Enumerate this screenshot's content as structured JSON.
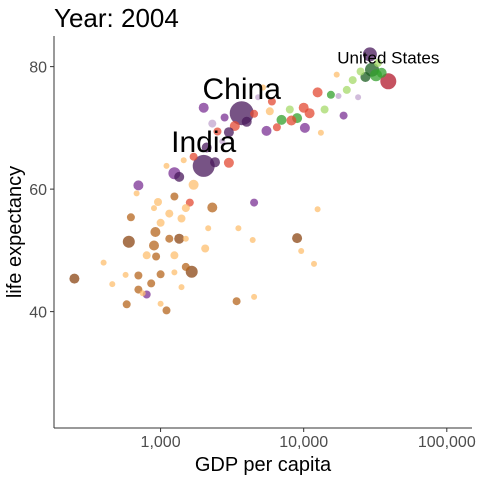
{
  "chart_data": {
    "type": "scatter",
    "title": "Year: 2004",
    "xlabel": "GDP per capita",
    "ylabel": "life expectancy",
    "xscale": "log",
    "xlim": [
      180,
      150000
    ],
    "ylim": [
      21,
      85
    ],
    "xticks": [
      1000,
      10000,
      100000
    ],
    "xtick_labels": [
      "1,000",
      "10,000",
      "100,000"
    ],
    "yticks": [
      40,
      60,
      80
    ],
    "ytick_labels": [
      "40",
      "60",
      "80"
    ],
    "grid": false,
    "size_note": "point area proportional to population",
    "continent_colors": {
      "africa": "#b5651d",
      "africa_light": "#fdbf6f",
      "americas": "#7b3294",
      "americas_light": "#c2a5cf",
      "asia": "#e34a33",
      "europe": "#33a02c",
      "europe_light": "#a6d96a",
      "oceania": "#b2182b"
    },
    "labels": [
      {
        "text": "China",
        "x": 3690,
        "y": 72.4,
        "size": 30
      },
      {
        "text": "India",
        "x": 2000,
        "y": 63.8,
        "size": 30
      },
      {
        "text": "United States",
        "x": 39000,
        "y": 79.2,
        "size": 17
      }
    ],
    "points": [
      {
        "x": 3690,
        "y": 72.4,
        "r": 12,
        "c": "#4a1a5c"
      },
      {
        "x": 2000,
        "y": 63.8,
        "r": 11,
        "c": "#4a1a5c"
      },
      {
        "x": 39000,
        "y": 77.6,
        "r": 8,
        "c": "#b2182b"
      },
      {
        "x": 29000,
        "y": 82.0,
        "r": 7,
        "c": "#4a1a5c"
      },
      {
        "x": 30000,
        "y": 79.5,
        "r": 7,
        "c": "#1b5e20"
      },
      {
        "x": 32000,
        "y": 78.6,
        "r": 6,
        "c": "#33a02c"
      },
      {
        "x": 35000,
        "y": 79.0,
        "r": 5,
        "c": "#33a02c"
      },
      {
        "x": 27000,
        "y": 78.3,
        "r": 5,
        "c": "#1b5e20"
      },
      {
        "x": 33000,
        "y": 80.6,
        "r": 4,
        "c": "#a6d96a"
      },
      {
        "x": 25000,
        "y": 79.2,
        "r": 4,
        "c": "#a6d96a"
      },
      {
        "x": 22000,
        "y": 77.8,
        "r": 4,
        "c": "#a6d96a"
      },
      {
        "x": 20000,
        "y": 76.2,
        "r": 4,
        "c": "#a6d96a"
      },
      {
        "x": 17000,
        "y": 78.7,
        "r": 3,
        "c": "#fdbf6f"
      },
      {
        "x": 15500,
        "y": 75.4,
        "r": 4,
        "c": "#33a02c"
      },
      {
        "x": 14000,
        "y": 73.0,
        "r": 4,
        "c": "#a6d96a"
      },
      {
        "x": 12500,
        "y": 75.8,
        "r": 5,
        "c": "#e34a33"
      },
      {
        "x": 11000,
        "y": 72.4,
        "r": 5,
        "c": "#e34a33"
      },
      {
        "x": 10000,
        "y": 73.3,
        "r": 5,
        "c": "#e34a33"
      },
      {
        "x": 9000,
        "y": 71.6,
        "r": 5,
        "c": "#33a02c"
      },
      {
        "x": 8000,
        "y": 73.0,
        "r": 4,
        "c": "#a6d96a"
      },
      {
        "x": 7000,
        "y": 71.3,
        "r": 5,
        "c": "#33a02c"
      },
      {
        "x": 6500,
        "y": 70.1,
        "r": 4,
        "c": "#e34a33"
      },
      {
        "x": 5800,
        "y": 72.7,
        "r": 4,
        "c": "#fdbf6f"
      },
      {
        "x": 6000,
        "y": 74.3,
        "r": 4,
        "c": "#e34a33"
      },
      {
        "x": 5200,
        "y": 76.6,
        "r": 3,
        "c": "#fdbf6f"
      },
      {
        "x": 4800,
        "y": 75.0,
        "r": 3,
        "c": "#c2a5cf"
      },
      {
        "x": 4500,
        "y": 72.3,
        "r": 4,
        "c": "#e34a33"
      },
      {
        "x": 10200,
        "y": 70.0,
        "r": 5,
        "c": "#7b3294"
      },
      {
        "x": 8200,
        "y": 71.2,
        "r": 5,
        "c": "#e34a33"
      },
      {
        "x": 13200,
        "y": 69.2,
        "r": 3,
        "c": "#fdbf6f"
      },
      {
        "x": 19000,
        "y": 72.0,
        "r": 4,
        "c": "#7b3294"
      },
      {
        "x": 24000,
        "y": 75.0,
        "r": 3,
        "c": "#c2a5cf"
      },
      {
        "x": 17500,
        "y": 75.2,
        "r": 3,
        "c": "#c2a5cf"
      },
      {
        "x": 5500,
        "y": 69.5,
        "r": 5,
        "c": "#7b3294"
      },
      {
        "x": 4000,
        "y": 71.0,
        "r": 5,
        "c": "#4a1a5c"
      },
      {
        "x": 3300,
        "y": 70.3,
        "r": 5,
        "c": "#e34a33"
      },
      {
        "x": 3000,
        "y": 69.3,
        "r": 5,
        "c": "#4a1a5c"
      },
      {
        "x": 2800,
        "y": 71.7,
        "r": 4,
        "c": "#7b3294"
      },
      {
        "x": 2500,
        "y": 69.4,
        "r": 4,
        "c": "#e34a33"
      },
      {
        "x": 2300,
        "y": 70.7,
        "r": 4,
        "c": "#c2a5cf"
      },
      {
        "x": 2000,
        "y": 73.3,
        "r": 5,
        "c": "#7b3294"
      },
      {
        "x": 2100,
        "y": 66.8,
        "r": 5,
        "c": "#4a1a5c"
      },
      {
        "x": 2400,
        "y": 64.4,
        "r": 5,
        "c": "#4a1a5c"
      },
      {
        "x": 2700,
        "y": 67.8,
        "r": 3,
        "c": "#c2a5cf"
      },
      {
        "x": 3000,
        "y": 64.3,
        "r": 5,
        "c": "#e34a33"
      },
      {
        "x": 1700,
        "y": 65.3,
        "r": 4,
        "c": "#e34a33"
      },
      {
        "x": 1450,
        "y": 64.7,
        "r": 3,
        "c": "#fdbf6f"
      },
      {
        "x": 1350,
        "y": 62.0,
        "r": 5,
        "c": "#4a1a5c"
      },
      {
        "x": 1250,
        "y": 62.6,
        "r": 6,
        "c": "#7b3294"
      },
      {
        "x": 1100,
        "y": 63.8,
        "r": 3,
        "c": "#fdbf6f"
      },
      {
        "x": 1700,
        "y": 60.7,
        "r": 5,
        "c": "#fdbf6f"
      },
      {
        "x": 1600,
        "y": 57.8,
        "r": 4,
        "c": "#e34a33"
      },
      {
        "x": 1250,
        "y": 58.8,
        "r": 4,
        "c": "#b5651d"
      },
      {
        "x": 700,
        "y": 60.6,
        "r": 5,
        "c": "#7b3294"
      },
      {
        "x": 680,
        "y": 59.3,
        "r": 3,
        "c": "#fdbf6f"
      },
      {
        "x": 960,
        "y": 57.9,
        "r": 4,
        "c": "#fdbf6f"
      },
      {
        "x": 900,
        "y": 56.9,
        "r": 3,
        "c": "#fdbf6f"
      },
      {
        "x": 1150,
        "y": 56.0,
        "r": 4,
        "c": "#fdbf6f"
      },
      {
        "x": 1500,
        "y": 56.9,
        "r": 4,
        "c": "#fdbf6f"
      },
      {
        "x": 2300,
        "y": 57.0,
        "r": 5,
        "c": "#b5651d"
      },
      {
        "x": 4500,
        "y": 57.8,
        "r": 4,
        "c": "#7b3294"
      },
      {
        "x": 12500,
        "y": 56.7,
        "r": 3,
        "c": "#fdbf6f"
      },
      {
        "x": 620,
        "y": 55.4,
        "r": 4,
        "c": "#b5651d"
      },
      {
        "x": 1000,
        "y": 54.5,
        "r": 4,
        "c": "#fdbf6f"
      },
      {
        "x": 1400,
        "y": 55.2,
        "r": 4,
        "c": "#fdbf6f"
      },
      {
        "x": 2150,
        "y": 53.6,
        "r": 3,
        "c": "#fdbf6f"
      },
      {
        "x": 3500,
        "y": 53.6,
        "r": 3,
        "c": "#fdbf6f"
      },
      {
        "x": 920,
        "y": 53.0,
        "r": 5,
        "c": "#b5651d"
      },
      {
        "x": 600,
        "y": 51.4,
        "r": 6,
        "c": "#8b4513"
      },
      {
        "x": 900,
        "y": 50.8,
        "r": 5,
        "c": "#b5651d"
      },
      {
        "x": 1150,
        "y": 51.9,
        "r": 4,
        "c": "#b5651d"
      },
      {
        "x": 1350,
        "y": 51.9,
        "r": 5,
        "c": "#8b4513"
      },
      {
        "x": 1500,
        "y": 51.9,
        "r": 3,
        "c": "#fdbf6f"
      },
      {
        "x": 2050,
        "y": 50.3,
        "r": 4,
        "c": "#fdbf6f"
      },
      {
        "x": 4400,
        "y": 51.7,
        "r": 3,
        "c": "#fdbf6f"
      },
      {
        "x": 9000,
        "y": 52.0,
        "r": 5,
        "c": "#8b4513"
      },
      {
        "x": 9600,
        "y": 49.9,
        "r": 3,
        "c": "#fdbf6f"
      },
      {
        "x": 11800,
        "y": 47.8,
        "r": 3,
        "c": "#fdbf6f"
      },
      {
        "x": 800,
        "y": 49.2,
        "r": 4,
        "c": "#fdbf6f"
      },
      {
        "x": 930,
        "y": 49.0,
        "r": 4,
        "c": "#b5651d"
      },
      {
        "x": 1250,
        "y": 49.2,
        "r": 4,
        "c": "#fdbf6f"
      },
      {
        "x": 400,
        "y": 48.0,
        "r": 3,
        "c": "#fdbf6f"
      },
      {
        "x": 1500,
        "y": 47.3,
        "r": 4,
        "c": "#b5651d"
      },
      {
        "x": 1650,
        "y": 46.5,
        "r": 6,
        "c": "#8b4513"
      },
      {
        "x": 250,
        "y": 45.4,
        "r": 5,
        "c": "#8b4513"
      },
      {
        "x": 570,
        "y": 46.0,
        "r": 3,
        "c": "#fdbf6f"
      },
      {
        "x": 700,
        "y": 45.9,
        "r": 4,
        "c": "#b5651d"
      },
      {
        "x": 1000,
        "y": 46.1,
        "r": 4,
        "c": "#b5651d"
      },
      {
        "x": 1250,
        "y": 46.4,
        "r": 3,
        "c": "#fdbf6f"
      },
      {
        "x": 460,
        "y": 44.5,
        "r": 3,
        "c": "#fdbf6f"
      },
      {
        "x": 860,
        "y": 44.6,
        "r": 4,
        "c": "#b5651d"
      },
      {
        "x": 700,
        "y": 43.6,
        "r": 4,
        "c": "#b5651d"
      },
      {
        "x": 1400,
        "y": 44.0,
        "r": 3,
        "c": "#fdbf6f"
      },
      {
        "x": 800,
        "y": 42.8,
        "r": 4,
        "c": "#7b3294"
      },
      {
        "x": 750,
        "y": 43.0,
        "r": 3,
        "c": "#fdbf6f"
      },
      {
        "x": 4500,
        "y": 42.4,
        "r": 3,
        "c": "#fdbf6f"
      },
      {
        "x": 3400,
        "y": 41.7,
        "r": 4,
        "c": "#b5651d"
      },
      {
        "x": 580,
        "y": 41.2,
        "r": 4,
        "c": "#b5651d"
      },
      {
        "x": 1000,
        "y": 41.3,
        "r": 3,
        "c": "#fdbf6f"
      },
      {
        "x": 1100,
        "y": 40.2,
        "r": 4,
        "c": "#b5651d"
      }
    ]
  }
}
